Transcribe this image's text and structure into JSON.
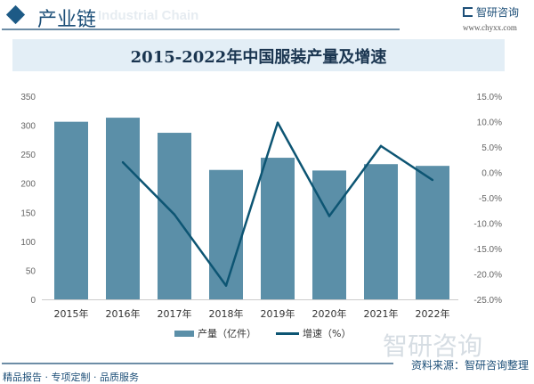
{
  "header": {
    "title": "产业链",
    "watermark": "Industrial Chain",
    "logo": "智研咨询",
    "url": "www.chyxx.com"
  },
  "footer": {
    "source": "资料来源：智研咨询整理",
    "slogan": "精品报告 · 专项定制 · 品质服务",
    "watermark": "智研咨询"
  },
  "chart_data": {
    "type": "bar+line",
    "title": "2015-2022年中国服装产量及增速",
    "categories": [
      "2015年",
      "2016年",
      "2017年",
      "2018年",
      "2019年",
      "2020年",
      "2021年",
      "2022年"
    ],
    "series": [
      {
        "name": "产量（亿件）",
        "type": "bar",
        "axis": "left",
        "color": "#5b8fa8",
        "values": [
          306,
          313,
          287,
          223,
          244,
          222,
          233,
          230
        ]
      },
      {
        "name": "增速（%）",
        "type": "line",
        "axis": "right",
        "color": "#0d5573",
        "values": [
          null,
          2.0,
          -8.3,
          -22.3,
          9.8,
          -8.6,
          5.2,
          -1.5
        ]
      }
    ],
    "left_axis": {
      "min": 0,
      "max": 350,
      "ticks": [
        "0",
        "50",
        "100",
        "150",
        "200",
        "250",
        "300",
        "350"
      ]
    },
    "right_axis": {
      "min": -25,
      "max": 15,
      "ticks": [
        "-25.0%",
        "-20.0%",
        "-15.0%",
        "-10.0%",
        "-5.0%",
        "0.0%",
        "5.0%",
        "10.0%",
        "15.0%"
      ]
    },
    "grid": false,
    "legend": "bottom"
  }
}
